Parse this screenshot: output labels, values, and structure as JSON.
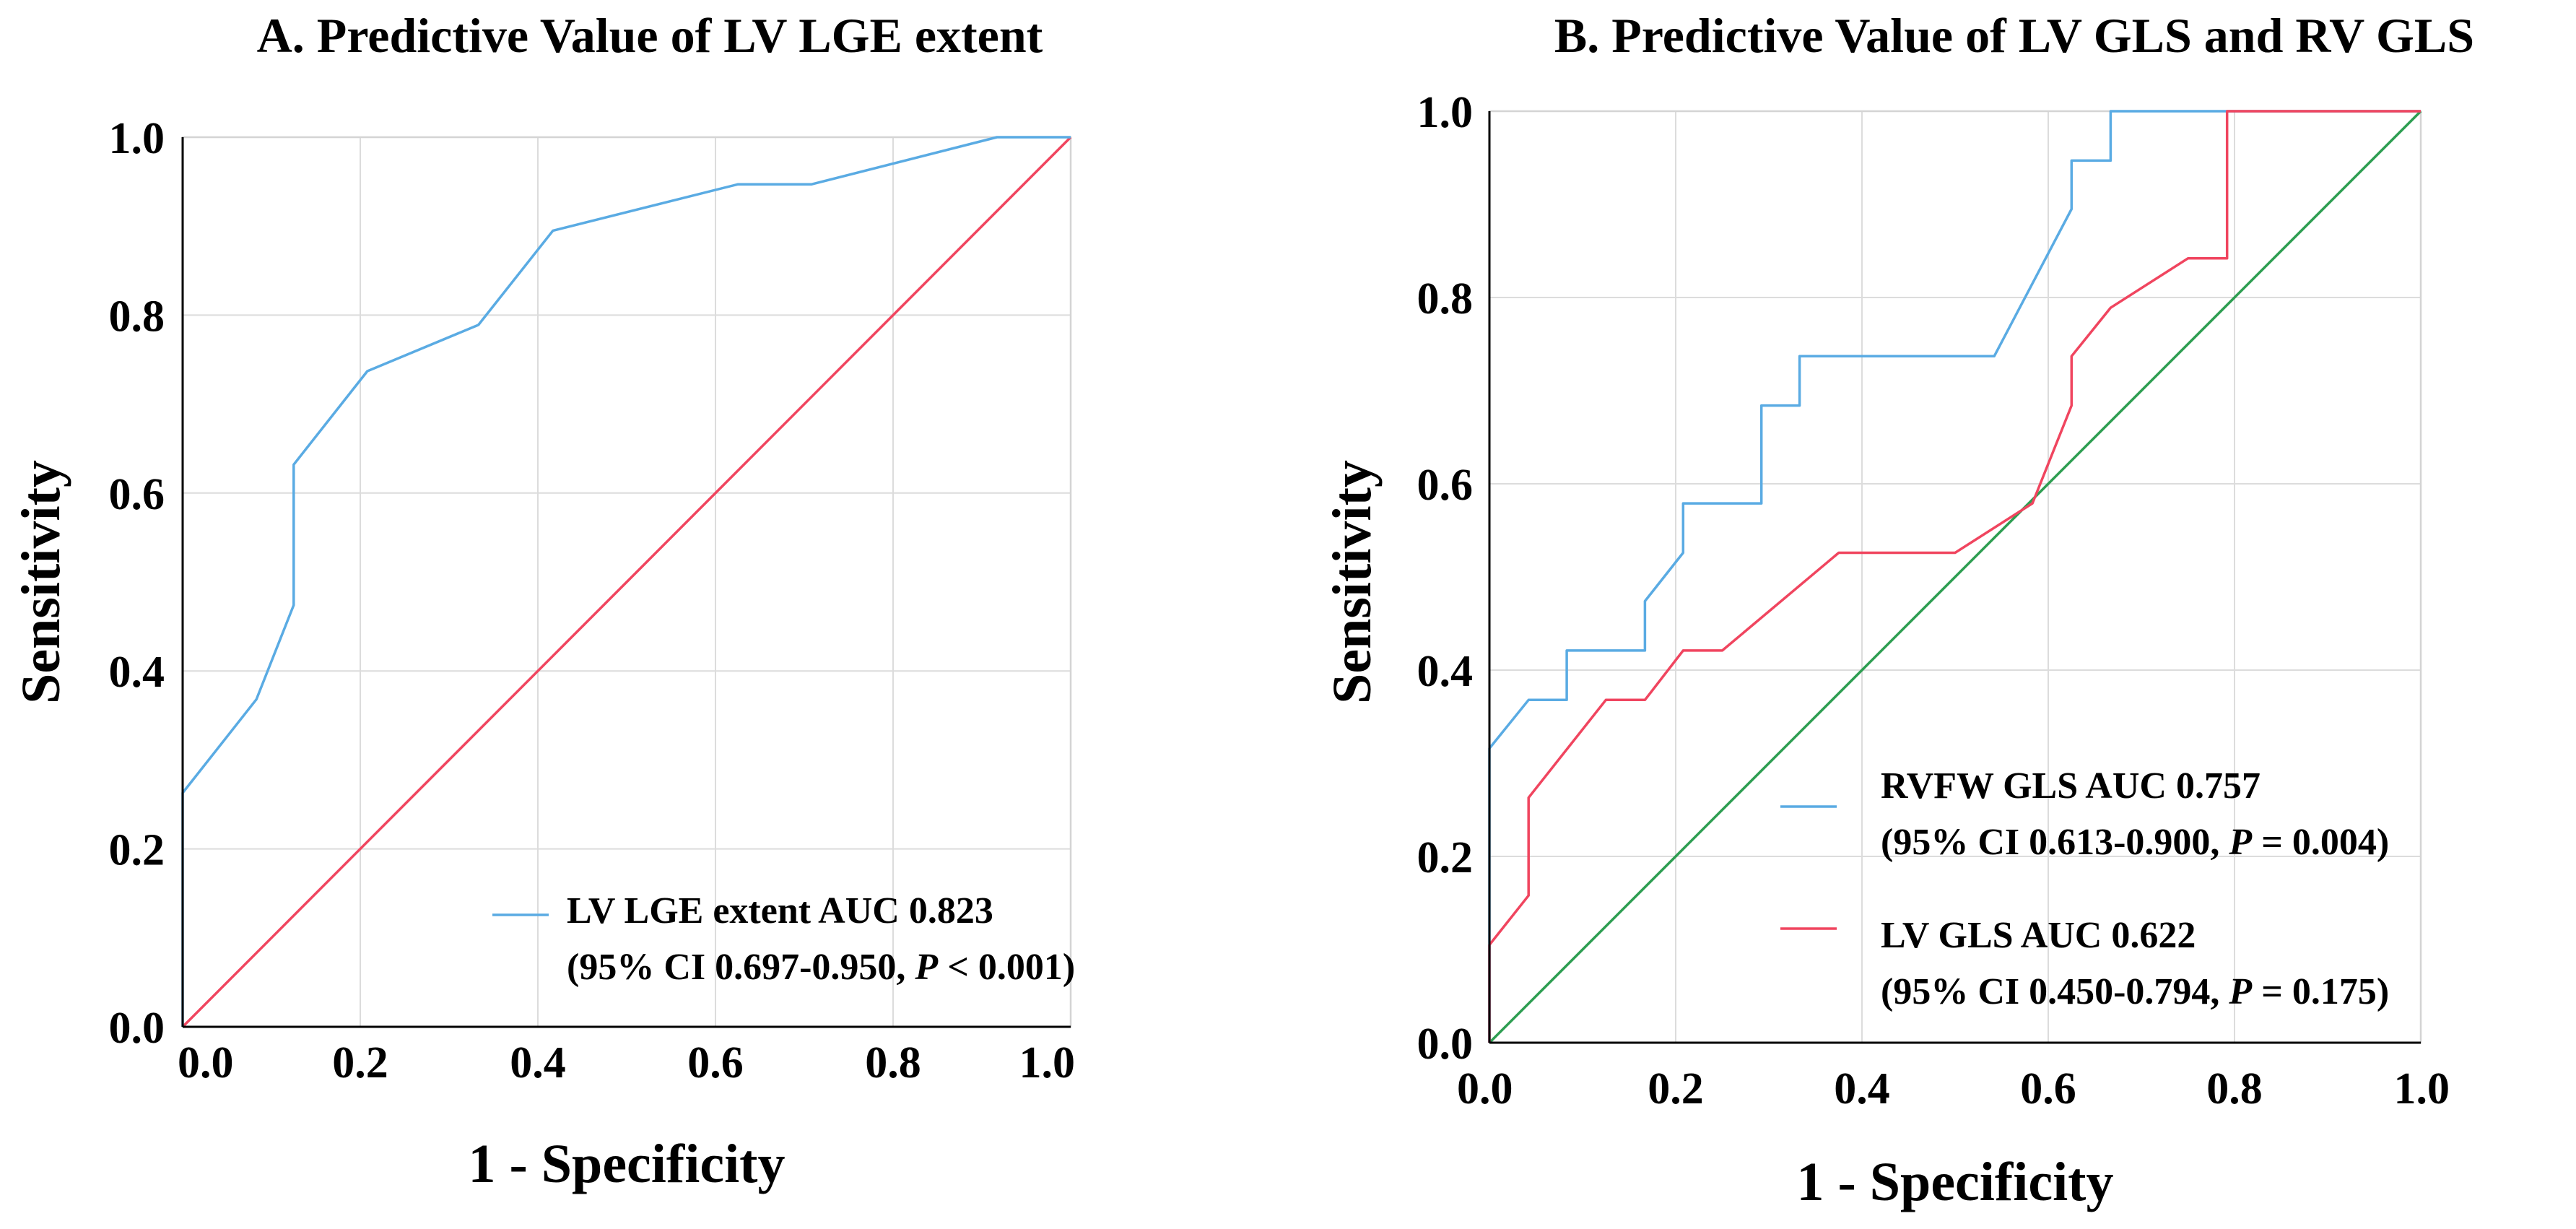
{
  "chart_data": [
    {
      "type": "line",
      "title": "A. Predictive Value of LV LGE extent",
      "xlabel": "1 - Specificity",
      "ylabel": "Sensitivity",
      "xlim": [
        0,
        1
      ],
      "ylim": [
        0,
        1
      ],
      "x_ticks": [
        "0.0",
        "0.2",
        "0.4",
        "0.6",
        "0.8",
        "1.0"
      ],
      "y_ticks": [
        "0.0",
        "0.2",
        "0.4",
        "0.6",
        "0.8",
        "1.0"
      ],
      "grid": true,
      "legend_position": "bottom-right",
      "series": [
        {
          "name": "LV LGE extent",
          "legend_line1": "LV LGE extent AUC 0.823",
          "legend_line2_prefix": "(95% CI 0.697-0.950, ",
          "legend_p": "P",
          "legend_line2_suffix": " < 0.001)",
          "color": "#5aabe3",
          "x": [
            0,
            0,
            0.083,
            0.125,
            0.125,
            0.208,
            0.333,
            0.417,
            0.625,
            0.708,
            0.917,
            1.0
          ],
          "y": [
            0,
            0.263,
            0.368,
            0.474,
            0.632,
            0.737,
            0.789,
            0.895,
            0.947,
            0.947,
            1.0,
            1.0
          ]
        },
        {
          "name": "Reference",
          "color": "#f0455f",
          "x": [
            0,
            1
          ],
          "y": [
            0,
            1
          ]
        }
      ]
    },
    {
      "type": "line",
      "title": "B. Predictive Value of LV GLS and RV GLS",
      "xlabel": "1 - Specificity",
      "ylabel": "Sensitivity",
      "xlim": [
        0,
        1
      ],
      "ylim": [
        0,
        1
      ],
      "x_ticks": [
        "0.0",
        "0.2",
        "0.4",
        "0.6",
        "0.8",
        "1.0"
      ],
      "y_ticks": [
        "0.0",
        "0.2",
        "0.4",
        "0.6",
        "0.8",
        "1.0"
      ],
      "grid": true,
      "legend_position": "bottom-right",
      "series": [
        {
          "name": "RVFW GLS",
          "legend_line1": "RVFW GLS AUC 0.757",
          "legend_line2_prefix": "(95% CI 0.613-0.900, ",
          "legend_p": "P",
          "legend_line2_suffix": " = 0.004)",
          "color": "#5aabe3",
          "x": [
            0,
            0,
            0.042,
            0.083,
            0.083,
            0.167,
            0.167,
            0.208,
            0.208,
            0.292,
            0.292,
            0.333,
            0.333,
            0.542,
            0.625,
            0.625,
            0.667,
            0.667,
            1.0
          ],
          "y": [
            0,
            0.316,
            0.368,
            0.368,
            0.421,
            0.421,
            0.474,
            0.526,
            0.579,
            0.579,
            0.684,
            0.684,
            0.737,
            0.737,
            0.895,
            0.947,
            0.947,
            1.0,
            1.0
          ]
        },
        {
          "name": "LV GLS",
          "legend_line1": "LV  GLS AUC 0.622",
          "legend_line2_prefix": "(95% CI 0.450-0.794, ",
          "legend_p": "P",
          "legend_line2_suffix": " = 0.175)",
          "color": "#f0455f",
          "x": [
            0,
            0,
            0.042,
            0.042,
            0.125,
            0.167,
            0.208,
            0.25,
            0.375,
            0.5,
            0.583,
            0.625,
            0.625,
            0.667,
            0.75,
            0.792,
            0.792,
            1.0
          ],
          "y": [
            0,
            0.105,
            0.158,
            0.263,
            0.368,
            0.368,
            0.421,
            0.421,
            0.526,
            0.526,
            0.579,
            0.684,
            0.737,
            0.789,
            0.842,
            0.842,
            1.0,
            1.0
          ]
        },
        {
          "name": "Reference",
          "color": "#2e9e52",
          "x": [
            0,
            1
          ],
          "y": [
            0,
            1
          ]
        }
      ]
    }
  ]
}
